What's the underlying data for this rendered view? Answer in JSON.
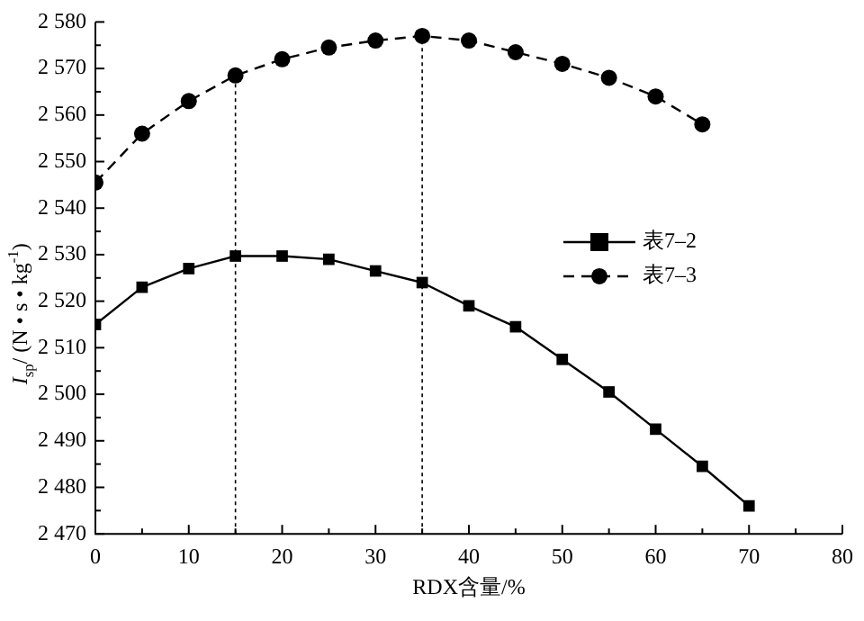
{
  "chart_data": {
    "type": "line",
    "xlabel": "RDX含量/%",
    "ylabel": "I$_{sp}$/ (N • s • kg$^{-1}$)",
    "x": [
      0,
      5,
      10,
      15,
      20,
      25,
      30,
      35,
      40,
      45,
      50,
      55,
      60,
      65,
      70
    ],
    "series": [
      {
        "name": "表7–2",
        "color": "#000000",
        "marker": "square",
        "line_style": "solid",
        "values": [
          2515,
          2523,
          2527,
          2529.7,
          2529.7,
          2529,
          2526.5,
          2524,
          2519,
          2514.5,
          2507.5,
          2500.5,
          2492.5,
          2484.5,
          2476
        ]
      },
      {
        "name": "表7–3",
        "color": "#000000",
        "marker": "circle",
        "line_style": "dashed",
        "values": [
          2545.5,
          2556,
          2563,
          2568.5,
          2572,
          2574.5,
          2576,
          2577,
          2576,
          2573.5,
          2571,
          2568,
          2564,
          2558,
          null
        ]
      }
    ],
    "xlim": [
      0,
      80
    ],
    "xticks": [
      0,
      {
        "value": 5,
        "label": null
      },
      10,
      {
        "value": 15,
        "label": null
      },
      20,
      {
        "value": 25,
        "label": null
      },
      30,
      {
        "value": 35,
        "label": null
      },
      40,
      {
        "value": 45,
        "label": null
      },
      50,
      {
        "value": 55,
        "label": null
      },
      60,
      {
        "value": 65,
        "label": null
      },
      70,
      {
        "value": 75,
        "label": null
      },
      80
    ],
    "ylim": [
      2470,
      2580
    ],
    "yticks": [
      {
        "value": 2470,
        "label": "2 470"
      },
      {
        "value": 2475,
        "label": null
      },
      {
        "value": 2480,
        "label": "2 480"
      },
      {
        "value": 2485,
        "label": null
      },
      {
        "value": 2490,
        "label": "2 490"
      },
      {
        "value": 2495,
        "label": null
      },
      {
        "value": 2500,
        "label": "2 500"
      },
      {
        "value": 2505,
        "label": null
      },
      {
        "value": 2510,
        "label": "2 510"
      },
      {
        "value": 2515,
        "label": null
      },
      {
        "value": 2520,
        "label": "2 520"
      },
      {
        "value": 2525,
        "label": null
      },
      {
        "value": 2530,
        "label": "2 530"
      },
      {
        "value": 2535,
        "label": null
      },
      {
        "value": 2540,
        "label": "2 540"
      },
      {
        "value": 2545,
        "label": null
      },
      {
        "value": 2550,
        "label": "2 550"
      },
      {
        "value": 2555,
        "label": null
      },
      {
        "value": 2560,
        "label": "2 560"
      },
      {
        "value": 2565,
        "label": null
      },
      {
        "value": 2570,
        "label": "2 570"
      },
      {
        "value": 2575,
        "label": null
      },
      {
        "value": 2580,
        "label": "2 580"
      }
    ],
    "ref_lines": [
      {
        "axis": "x",
        "value": 15,
        "line_style": "dotted",
        "color": "#000000"
      },
      {
        "axis": "x",
        "value": 35,
        "line_style": "dotted",
        "color": "#000000"
      }
    ],
    "grid": false,
    "legend": "right"
  }
}
